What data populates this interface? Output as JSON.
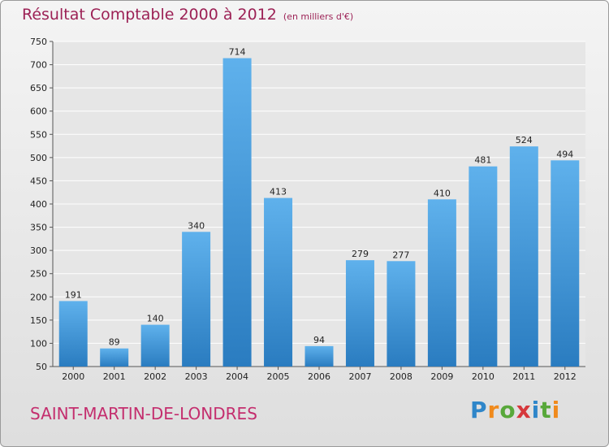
{
  "title": "Résultat Comptable 2000 à 2012",
  "subtitle": "(en milliers d'€)",
  "commune": "SAINT-MARTIN-DE-LONDRES",
  "logo": {
    "text": "Proxiti",
    "letters": [
      "P",
      "r",
      "o",
      "x",
      "i",
      "t",
      "i"
    ],
    "colors": [
      "#2f86c9",
      "#f08a1c",
      "#58a83a",
      "#d6383c",
      "#2f86c9",
      "#58a83a",
      "#f08a1c"
    ]
  },
  "colors": {
    "bar": "#3f97d8",
    "bar_light": "#5fb1ec",
    "bar_dark": "#2a7cc0",
    "title": "#9c2155",
    "commune": "#c42e6e"
  },
  "chart_data": {
    "type": "bar",
    "categories": [
      "2000",
      "2001",
      "2002",
      "2003",
      "2004",
      "2005",
      "2006",
      "2007",
      "2008",
      "2009",
      "2010",
      "2011",
      "2012"
    ],
    "values": [
      191,
      89,
      140,
      340,
      714,
      413,
      94,
      279,
      277,
      410,
      481,
      524,
      494
    ],
    "ylim": [
      50,
      750
    ],
    "yticks": [
      50,
      100,
      150,
      200,
      250,
      300,
      350,
      400,
      450,
      500,
      550,
      600,
      650,
      700,
      750
    ],
    "grid": true,
    "xlabel": "",
    "ylabel": ""
  }
}
